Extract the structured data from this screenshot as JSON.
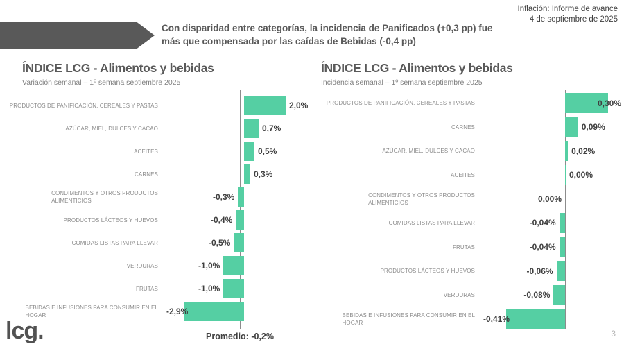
{
  "header": {
    "report_title": "Inflación: Informe de avance",
    "report_date": "4 de septiembre de 2025"
  },
  "headline": {
    "line1": "Con disparidad entre categorías, la incidencia de Panificados (+0,3 pp) fue",
    "line2": "más que compensada por las caídas de Bebidas (-0,4 pp)"
  },
  "footer": {
    "logo": "lcg.",
    "page_number": "3"
  },
  "colors": {
    "bar": "#55cfa3",
    "banner": "#595959",
    "axis_line": "#8c8c8c",
    "title_text": "#595959",
    "subtitle_text": "#7f7f7f",
    "category_text": "#8c8c8c",
    "value_text": "#3f3f3f"
  },
  "chart_data": [
    {
      "type": "bar",
      "orientation": "horizontal",
      "title": "ÍNDICE LCG - Alimentos y bebidas",
      "subtitle": "Variación semanal – 1º semana septiembre 2025",
      "unit": "%",
      "xlim": [
        -3.0,
        2.2
      ],
      "grid": false,
      "average_value": -0.2,
      "average_label": "Promedio: -0,2%",
      "categories": [
        "PRODUCTOS DE PANIFICACIÓN, CEREALES Y PASTAS",
        "AZÚCAR, MIEL, DULCES Y CACAO",
        "ACEITES",
        "CARNES",
        "CONDIMENTOS Y OTROS PRODUCTOS ALIMENTICIOS",
        "PRODUCTOS LÁCTEOS Y HUEVOS",
        "COMIDAS LISTAS PARA LLEVAR",
        "VERDURAS",
        "FRUTAS",
        "BEBIDAS E INFUSIONES PARA CONSUMIR EN EL HOGAR"
      ],
      "category_lines": [
        [
          "PRODUCTOS DE PANIFICACIÓN, CEREALES Y PASTAS"
        ],
        [
          "AZÚCAR, MIEL, DULCES Y CACAO"
        ],
        [
          "ACEITES"
        ],
        [
          "CARNES"
        ],
        [
          "CONDIMENTOS Y OTROS PRODUCTOS",
          "ALIMENTICIOS"
        ],
        [
          "PRODUCTOS LÁCTEOS Y HUEVOS"
        ],
        [
          "COMIDAS LISTAS PARA LLEVAR"
        ],
        [
          "VERDURAS"
        ],
        [
          "FRUTAS"
        ],
        [
          "BEBIDAS E INFUSIONES PARA CONSUMIR EN EL",
          "HOGAR"
        ]
      ],
      "values": [
        2.0,
        0.7,
        0.5,
        0.3,
        -0.3,
        -0.4,
        -0.5,
        -1.0,
        -1.0,
        -2.9
      ],
      "value_labels": [
        "2,0%",
        "0,7%",
        "0,5%",
        "0,3%",
        "-0,3%",
        "-0,4%",
        "-0,5%",
        "-1,0%",
        "-1,0%",
        "-2,9%"
      ],
      "label_sides": [
        "right",
        "right",
        "right",
        "right",
        "left",
        "left",
        "left",
        "left",
        "left",
        "left"
      ]
    },
    {
      "type": "bar",
      "orientation": "horizontal",
      "title": "ÍNDICE LCG - Alimentos y bebidas",
      "subtitle": "Incidencia semanal – 1º semana septiembre 2025",
      "unit": "%",
      "xlim": [
        -0.45,
        0.33
      ],
      "grid": false,
      "average_value": null,
      "average_label": null,
      "categories": [
        "PRODUCTOS DE PANIFICACIÓN, CEREALES Y PASTAS",
        "CARNES",
        "AZÚCAR, MIEL, DULCES Y CACAO",
        "ACEITES",
        "CONDIMENTOS Y OTROS PRODUCTOS ALIMENTICIOS",
        "COMIDAS LISTAS PARA LLEVAR",
        "FRUTAS",
        "PRODUCTOS LÁCTEOS Y HUEVOS",
        "VERDURAS",
        "BEBIDAS E INFUSIONES PARA CONSUMIR EN EL HOGAR"
      ],
      "category_lines": [
        [
          "PRODUCTOS DE PANIFICACIÓN, CEREALES Y PASTAS"
        ],
        [
          "CARNES"
        ],
        [
          "AZÚCAR, MIEL, DULCES Y CACAO"
        ],
        [
          "ACEITES"
        ],
        [
          "CONDIMENTOS Y OTROS PRODUCTOS",
          "ALIMENTICIOS"
        ],
        [
          "COMIDAS LISTAS PARA LLEVAR"
        ],
        [
          "FRUTAS"
        ],
        [
          "PRODUCTOS LÁCTEOS Y HUEVOS"
        ],
        [
          "VERDURAS"
        ],
        [
          "BEBIDAS E INFUSIONES PARA CONSUMIR EN EL",
          "HOGAR"
        ]
      ],
      "values": [
        0.3,
        0.09,
        0.02,
        0.0,
        0.0,
        -0.04,
        -0.04,
        -0.06,
        -0.08,
        -0.41
      ],
      "value_labels": [
        "0,30%",
        "0,09%",
        "0,02%",
        "0,00%",
        "0,00%",
        "-0,04%",
        "-0,04%",
        "-0,06%",
        "-0,08%",
        "-0,41%"
      ],
      "label_sides": [
        "right",
        "right",
        "right",
        "right",
        "left",
        "left",
        "left",
        "left",
        "left",
        "left"
      ]
    }
  ]
}
